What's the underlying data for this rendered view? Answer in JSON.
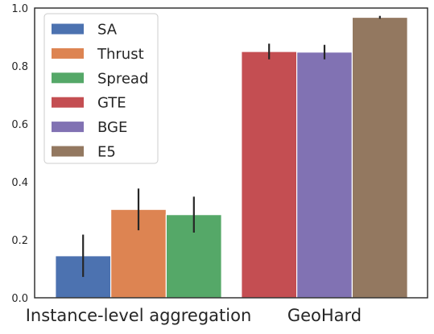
{
  "chart_data": {
    "type": "bar",
    "categories": [
      "Instance-level aggregation",
      "GeoHard"
    ],
    "ylim": [
      0,
      1.0
    ],
    "yticks": [
      "0.0",
      "0.2",
      "0.4",
      "0.6",
      "0.8",
      "1.0"
    ],
    "grid": false,
    "legend_position": "top-left",
    "series": [
      {
        "name": "SA",
        "color": "#4c72b0",
        "values": [
          0.145,
          null
        ],
        "errors": [
          0.073,
          null
        ]
      },
      {
        "name": "Thrust",
        "color": "#dd8452",
        "values": [
          0.305,
          null
        ],
        "errors": [
          0.072,
          null
        ]
      },
      {
        "name": "Spread",
        "color": "#55a868",
        "values": [
          0.287,
          null
        ],
        "errors": [
          0.062,
          null
        ]
      },
      {
        "name": "GTE",
        "color": "#c44e52",
        "values": [
          null,
          0.85
        ],
        "errors": [
          null,
          0.027
        ]
      },
      {
        "name": "BGE",
        "color": "#8172b3",
        "values": [
          null,
          0.848
        ],
        "errors": [
          null,
          0.025
        ]
      },
      {
        "name": "E5",
        "color": "#937860",
        "values": [
          null,
          0.968
        ],
        "errors": [
          null,
          0.005
        ]
      }
    ]
  }
}
